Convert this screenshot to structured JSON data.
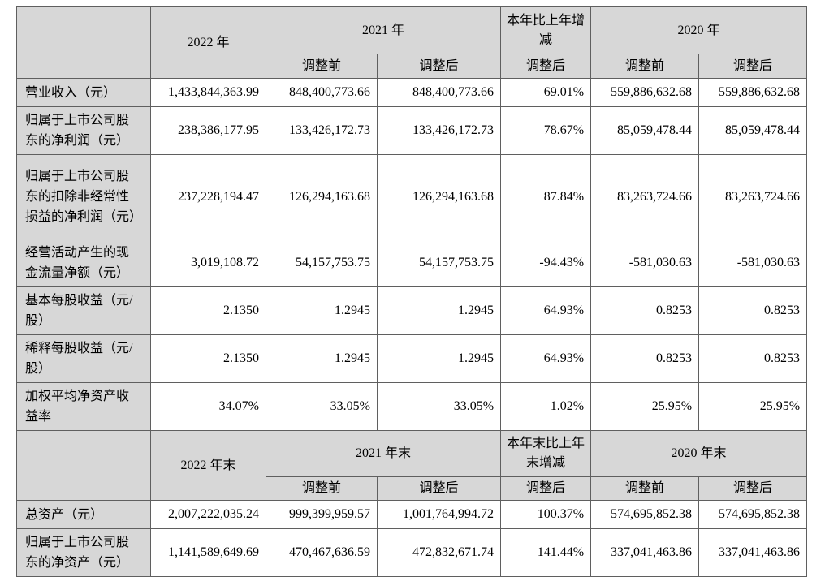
{
  "page": {
    "background": "#ffffff",
    "header_bg": "#d7d7d7",
    "label_bg": "#d7d7d7",
    "border_color": "#5f5f5f"
  },
  "table": {
    "sub_headers": {
      "pre": "调整前",
      "post": "调整后"
    },
    "sections": [
      {
        "period_current": "2022 年",
        "period_prev": "2021 年",
        "change_label": "本年比上年增减",
        "period_prev2": "2020 年",
        "rows": [
          {
            "label": "营业收入（元）",
            "values": [
              "1,433,844,363.99",
              "848,400,773.66",
              "848,400,773.66",
              "69.01%",
              "559,886,632.68",
              "559,886,632.68"
            ]
          },
          {
            "label": "归属于上市公司股东的净利润（元）",
            "values": [
              "238,386,177.95",
              "133,426,172.73",
              "133,426,172.73",
              "78.67%",
              "85,059,478.44",
              "85,059,478.44"
            ]
          },
          {
            "label": "归属于上市公司股东的扣除非经常性损益的净利润（元）",
            "values": [
              "237,228,194.47",
              "126,294,163.68",
              "126,294,163.68",
              "87.84%",
              "83,263,724.66",
              "83,263,724.66"
            ]
          },
          {
            "label": "经营活动产生的现金流量净额（元）",
            "values": [
              "3,019,108.72",
              "54,157,753.75",
              "54,157,753.75",
              "-94.43%",
              "-581,030.63",
              "-581,030.63"
            ]
          },
          {
            "label": "基本每股收益（元/股）",
            "values": [
              "2.1350",
              "1.2945",
              "1.2945",
              "64.93%",
              "0.8253",
              "0.8253"
            ]
          },
          {
            "label": "稀释每股收益（元/股）",
            "values": [
              "2.1350",
              "1.2945",
              "1.2945",
              "64.93%",
              "0.8253",
              "0.8253"
            ]
          },
          {
            "label": "加权平均净资产收益率",
            "values": [
              "34.07%",
              "33.05%",
              "33.05%",
              "1.02%",
              "25.95%",
              "25.95%"
            ]
          }
        ]
      },
      {
        "period_current": "2022 年末",
        "period_prev": "2021 年末",
        "change_label": "本年末比上年末增减",
        "period_prev2": "2020 年末",
        "rows": [
          {
            "label": "总资产（元）",
            "values": [
              "2,007,222,035.24",
              "999,399,959.57",
              "1,001,764,994.72",
              "100.37%",
              "574,695,852.38",
              "574,695,852.38"
            ]
          },
          {
            "label": "归属于上市公司股东的净资产（元）",
            "values": [
              "1,141,589,649.69",
              "470,467,636.59",
              "472,832,671.74",
              "141.44%",
              "337,041,463.86",
              "337,041,463.86"
            ]
          }
        ]
      }
    ]
  }
}
